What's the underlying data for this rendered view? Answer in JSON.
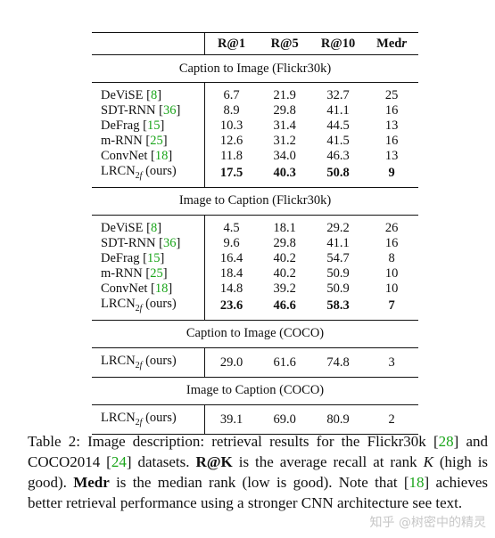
{
  "table": {
    "headers": [
      "",
      "R@1",
      "R@5",
      "R@10",
      "Medr"
    ],
    "sections": [
      {
        "title": "Caption to Image (Flickr30k)",
        "rows": [
          {
            "name": "DeViSE",
            "cite": "8",
            "vals": [
              "6.7",
              "21.9",
              "32.7",
              "25"
            ],
            "best": false
          },
          {
            "name": "SDT-RNN",
            "cite": "36",
            "vals": [
              "8.9",
              "29.8",
              "41.1",
              "16"
            ],
            "best": false
          },
          {
            "name": "DeFrag",
            "cite": "15",
            "vals": [
              "10.3",
              "31.4",
              "44.5",
              "13"
            ],
            "best": false
          },
          {
            "name": "m-RNN",
            "cite": "25",
            "vals": [
              "12.6",
              "31.2",
              "41.5",
              "16"
            ],
            "best": false
          },
          {
            "name": "ConvNet",
            "cite": "18",
            "vals": [
              "11.8",
              "34.0",
              "46.3",
              "13"
            ],
            "best": false
          },
          {
            "name": "LRCN2f (ours)",
            "cite": "",
            "vals": [
              "17.5",
              "40.3",
              "50.8",
              "9"
            ],
            "best": true
          }
        ]
      },
      {
        "title": "Image to Caption (Flickr30k)",
        "rows": [
          {
            "name": "DeViSE",
            "cite": "8",
            "vals": [
              "4.5",
              "18.1",
              "29.2",
              "26"
            ],
            "best": false
          },
          {
            "name": "SDT-RNN",
            "cite": "36",
            "vals": [
              "9.6",
              "29.8",
              "41.1",
              "16"
            ],
            "best": false
          },
          {
            "name": "DeFrag",
            "cite": "15",
            "vals": [
              "16.4",
              "40.2",
              "54.7",
              "8"
            ],
            "best": false
          },
          {
            "name": "m-RNN",
            "cite": "25",
            "vals": [
              "18.4",
              "40.2",
              "50.9",
              "10"
            ],
            "best": false
          },
          {
            "name": "ConvNet",
            "cite": "18",
            "vals": [
              "14.8",
              "39.2",
              "50.9",
              "10"
            ],
            "best": false
          },
          {
            "name": "LRCN2f (ours)",
            "cite": "",
            "vals": [
              "23.6",
              "46.6",
              "58.3",
              "7"
            ],
            "best": true
          }
        ]
      },
      {
        "title": "Caption to Image (COCO)",
        "rows": [
          {
            "name": "LRCN2f (ours)",
            "cite": "",
            "vals": [
              "29.0",
              "61.6",
              "74.8",
              "3"
            ],
            "best": false
          }
        ]
      },
      {
        "title": "Image to Caption (COCO)",
        "rows": [
          {
            "name": "LRCN2f (ours)",
            "cite": "",
            "vals": [
              "39.1",
              "69.0",
              "80.9",
              "2"
            ],
            "best": false
          }
        ]
      }
    ]
  },
  "caption": {
    "label": "Table 2:",
    "t1": "Image description: retrieval results for the Flickr30k [",
    "c1": "28",
    "t2": "] and COCO2014 [",
    "c2": "24",
    "t3": "] datasets.",
    "r_at_k": "R@K",
    "t4": "is the average recall at rank",
    "k": "K",
    "t5": "(high is good).",
    "medr": "Medr",
    "t6": "is the median rank (low is good). Note that [",
    "c3": "18",
    "t7": "] achieves better retrieval performance using a stronger CNN architecture  see text."
  },
  "watermark": "知乎 @树密中的精灵"
}
